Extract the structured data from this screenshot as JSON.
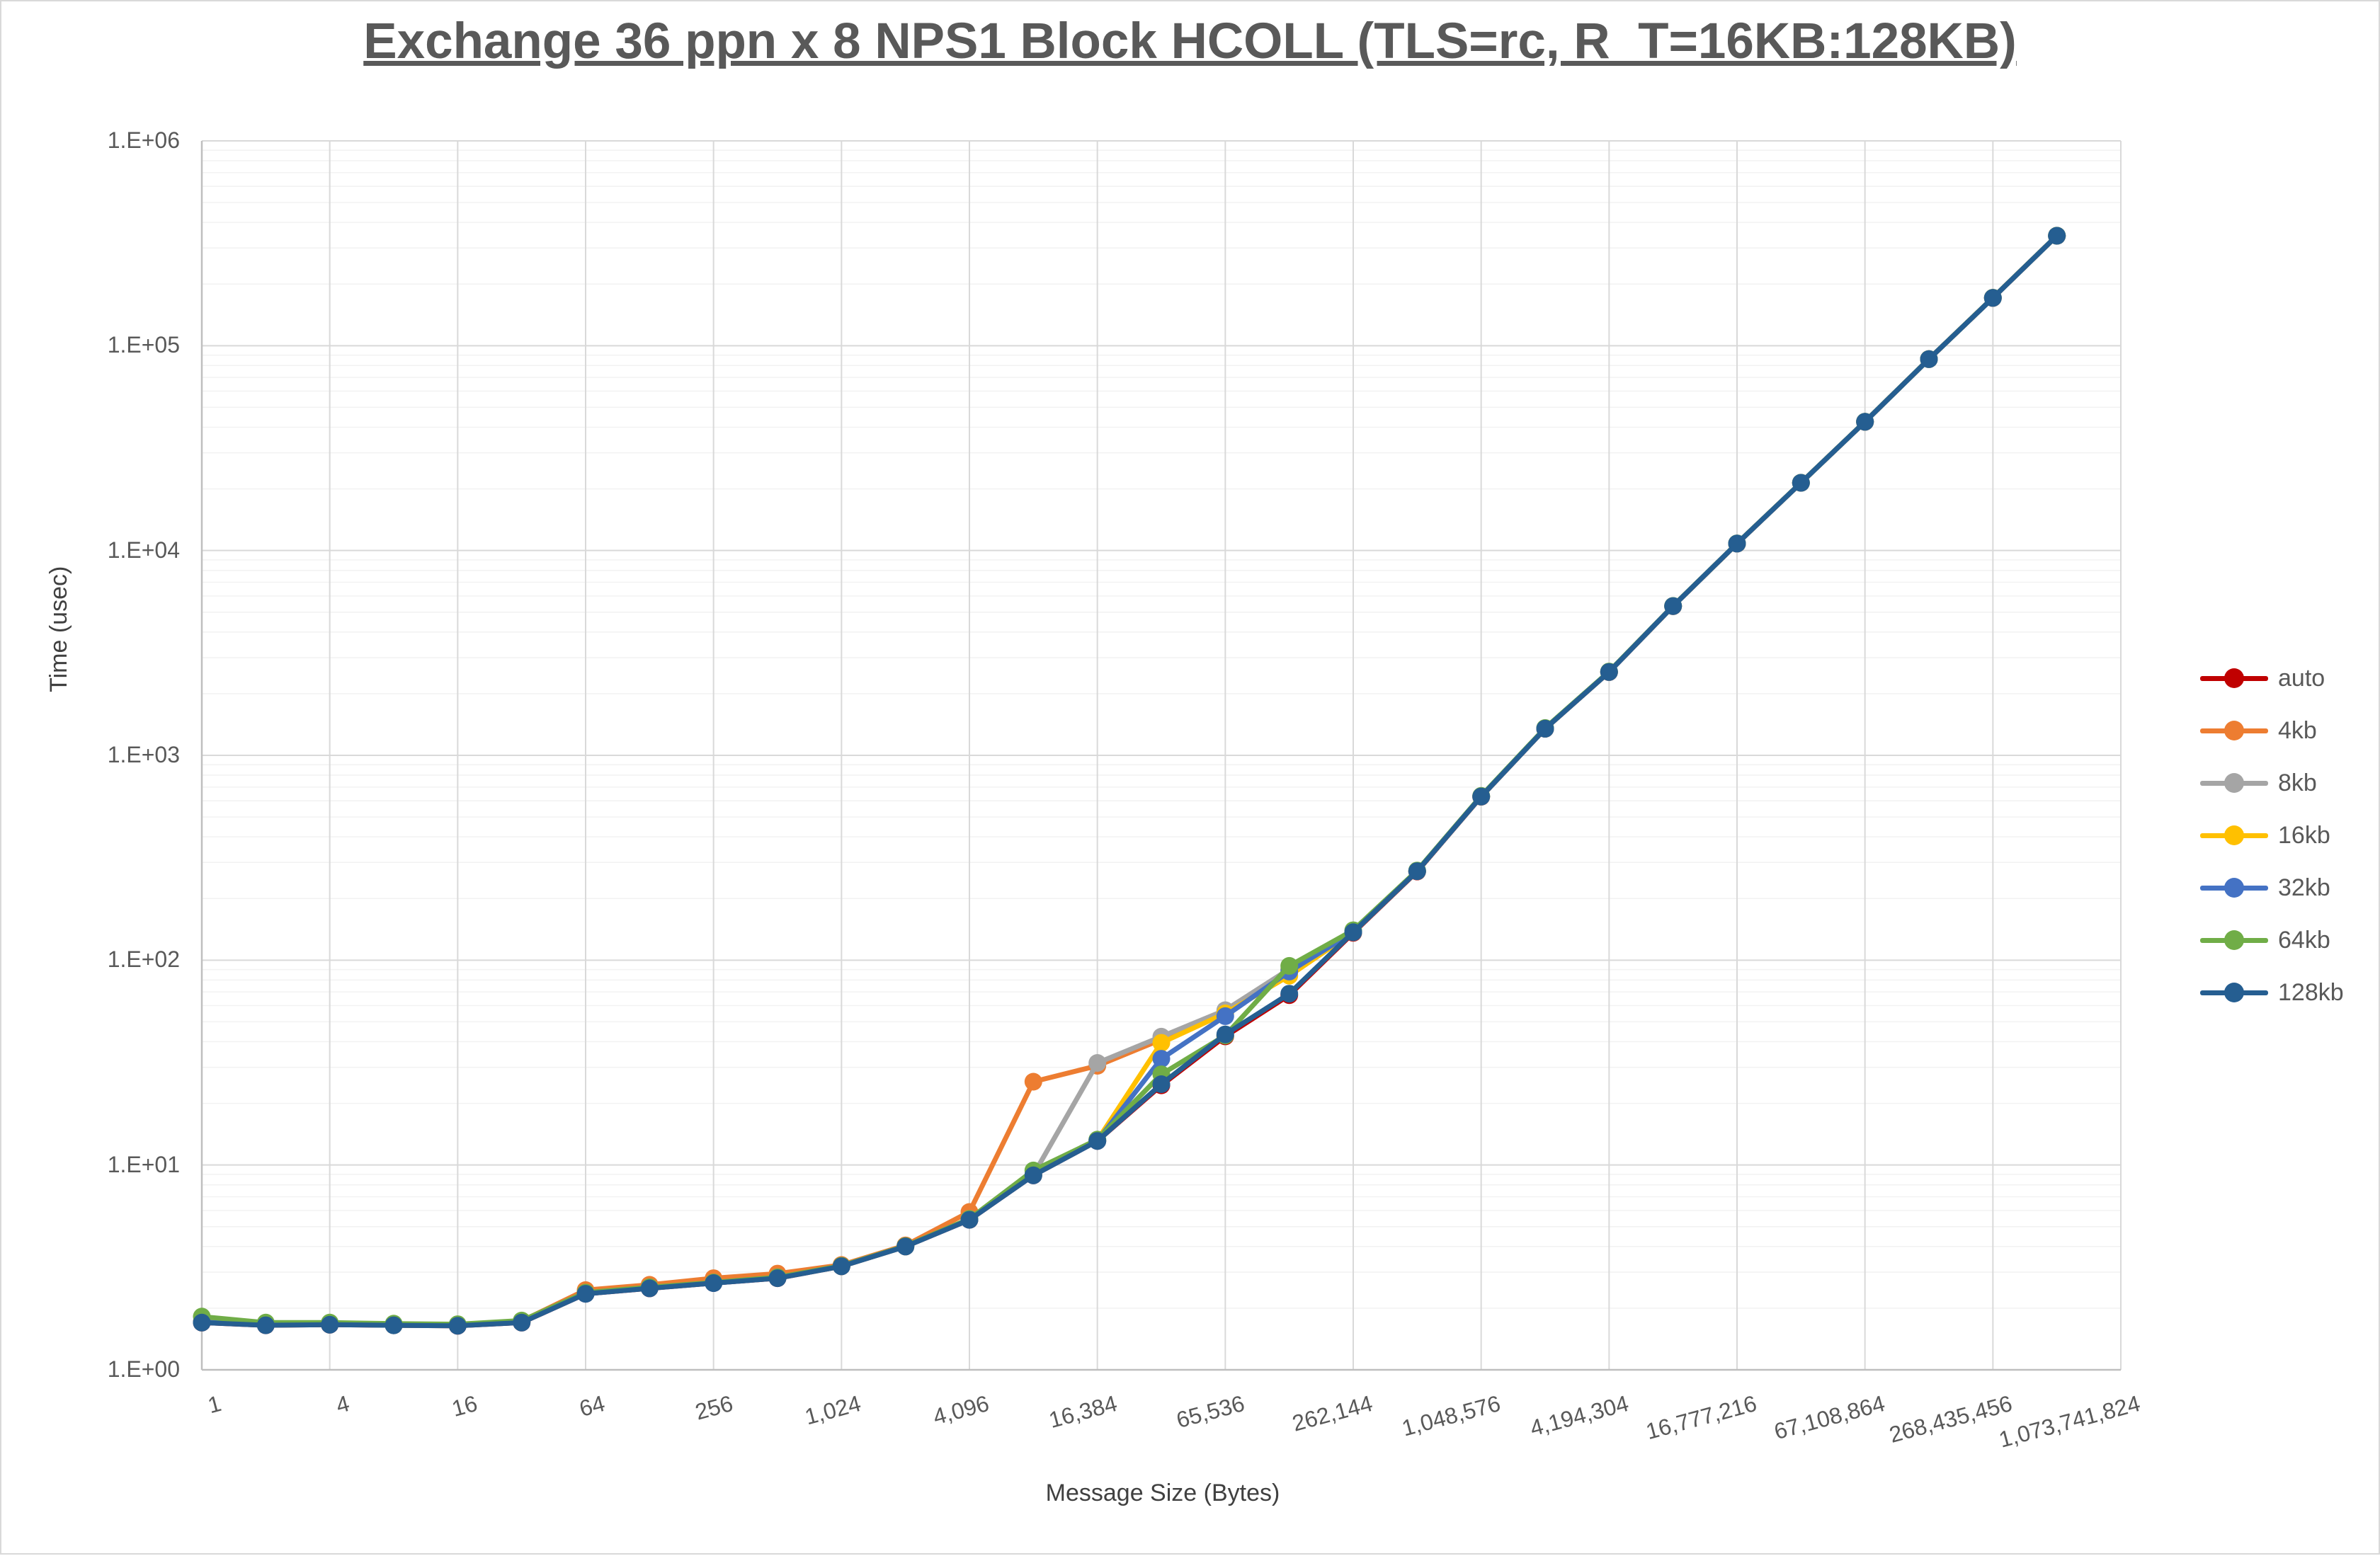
{
  "title": "Exchange 36 ppn x 8 NPS1 Block HCOLL (TLS=rc, R_T=16KB:128KB)",
  "axes": {
    "y_title": "Time (usec)",
    "x_title": "Message Size (Bytes)",
    "y_tick_labels": [
      "1.E+00",
      "1.E+01",
      "1.E+02",
      "1.E+03",
      "1.E+04",
      "1.E+05",
      "1.E+06"
    ],
    "x_tick_labels": [
      "1",
      "4",
      "16",
      "64",
      "256",
      "1,024",
      "4,096",
      "16,384",
      "65,536",
      "262,144",
      "1,048,576",
      "4,194,304",
      "16,777,216",
      "67,108,864",
      "268,435,456",
      "1,073,741,824"
    ]
  },
  "colors": {
    "title_text": "#595959",
    "axis_text": "#595959",
    "major_gridline": "#d9d9d9",
    "minor_gridline": "#f2f2f2",
    "axis_line": "#bfbfbf"
  },
  "chart_data": {
    "type": "line",
    "x_scale": "log2 categories, one point per power of 2",
    "y_scale": "log10",
    "ylim": [
      1,
      1000000
    ],
    "grid": "major decades + log minors horizontal, major verticals every 2 categories",
    "legend_position": "right",
    "title": "Exchange 36 ppn x 8 NPS1 Block HCOLL (TLS=rc, R_T=16KB:128KB)",
    "xlabel": "Message Size (Bytes)",
    "ylabel": "Time (usec)",
    "sizes": [
      1,
      2,
      4,
      8,
      16,
      32,
      64,
      128,
      256,
      512,
      1024,
      2048,
      4096,
      8192,
      16384,
      32768,
      65536,
      131072,
      262144,
      524288,
      1048576,
      2097152,
      4194304,
      8388608,
      16777216,
      33554432,
      67108864,
      134217728,
      268435456,
      536870912
    ],
    "series": [
      {
        "name": "auto",
        "color": "#c00000",
        "values": [
          1.7,
          1.65,
          1.66,
          1.65,
          1.64,
          1.7,
          2.35,
          2.5,
          2.65,
          2.8,
          3.2,
          4.0,
          5.4,
          8.9,
          13.1,
          24.5,
          42.5,
          67.5,
          136,
          271,
          628,
          1348,
          2550,
          5350,
          10800,
          21400,
          42500,
          86000,
          171000,
          344000
        ]
      },
      {
        "name": "4kb",
        "color": "#ed7d31",
        "values": [
          1.72,
          1.67,
          1.68,
          1.66,
          1.66,
          1.73,
          2.45,
          2.6,
          2.8,
          2.95,
          3.25,
          4.05,
          5.9,
          25.5,
          30.5,
          41.0,
          56.0,
          90.0,
          137,
          272,
          630,
          1350,
          2555,
          5355,
          10820,
          21420,
          42550,
          86050,
          171500,
          344500
        ]
      },
      {
        "name": "8kb",
        "color": "#a5a5a5",
        "values": [
          1.71,
          1.66,
          1.67,
          1.65,
          1.65,
          1.71,
          2.36,
          2.52,
          2.66,
          2.82,
          3.21,
          4.0,
          5.45,
          8.95,
          31.5,
          42.3,
          57.0,
          90.5,
          137,
          272,
          629,
          1349,
          2552,
          5352,
          10810,
          21410,
          42520,
          86020,
          171200,
          344200
        ]
      },
      {
        "name": "16kb",
        "color": "#ffc000",
        "values": [
          1.71,
          1.66,
          1.67,
          1.65,
          1.65,
          1.71,
          2.36,
          2.51,
          2.66,
          2.81,
          3.2,
          4.0,
          5.42,
          8.92,
          13.2,
          39.5,
          55.0,
          84.0,
          137,
          272,
          629,
          1349,
          2551,
          5351,
          10805,
          21405,
          42510,
          86010,
          171100,
          344100
        ]
      },
      {
        "name": "32kb",
        "color": "#4472c4",
        "values": [
          1.71,
          1.66,
          1.67,
          1.65,
          1.65,
          1.71,
          2.35,
          2.51,
          2.65,
          2.81,
          3.2,
          4.0,
          5.41,
          8.91,
          13.1,
          33.0,
          53.3,
          88.0,
          137,
          272,
          629,
          1349,
          2551,
          5351,
          10805,
          21405,
          42510,
          86010,
          171100,
          344100
        ]
      },
      {
        "name": "64kb",
        "color": "#70ad47",
        "values": [
          1.82,
          1.7,
          1.7,
          1.68,
          1.67,
          1.74,
          2.38,
          2.53,
          2.67,
          2.83,
          3.22,
          4.02,
          5.45,
          9.4,
          13.3,
          27.7,
          42.9,
          93.8,
          140,
          274,
          634,
          1360,
          2565,
          5365,
          10830,
          21430,
          42540,
          86040,
          171400,
          344400
        ]
      },
      {
        "name": "128kb",
        "color": "#255e91",
        "values": [
          1.7,
          1.65,
          1.66,
          1.65,
          1.64,
          1.7,
          2.35,
          2.5,
          2.65,
          2.8,
          3.2,
          4.0,
          5.4,
          8.9,
          13.1,
          24.8,
          43.4,
          68.6,
          137,
          272,
          630,
          1350,
          2554,
          5356,
          10815,
          21415,
          42515,
          86015,
          171200,
          344200
        ]
      }
    ]
  },
  "legend": [
    {
      "label": "auto",
      "color": "#c00000"
    },
    {
      "label": "4kb",
      "color": "#ed7d31"
    },
    {
      "label": "8kb",
      "color": "#a5a5a5"
    },
    {
      "label": "16kb",
      "color": "#ffc000"
    },
    {
      "label": "32kb",
      "color": "#4472c4"
    },
    {
      "label": "64kb",
      "color": "#70ad47"
    },
    {
      "label": "128kb",
      "color": "#255e91"
    }
  ]
}
